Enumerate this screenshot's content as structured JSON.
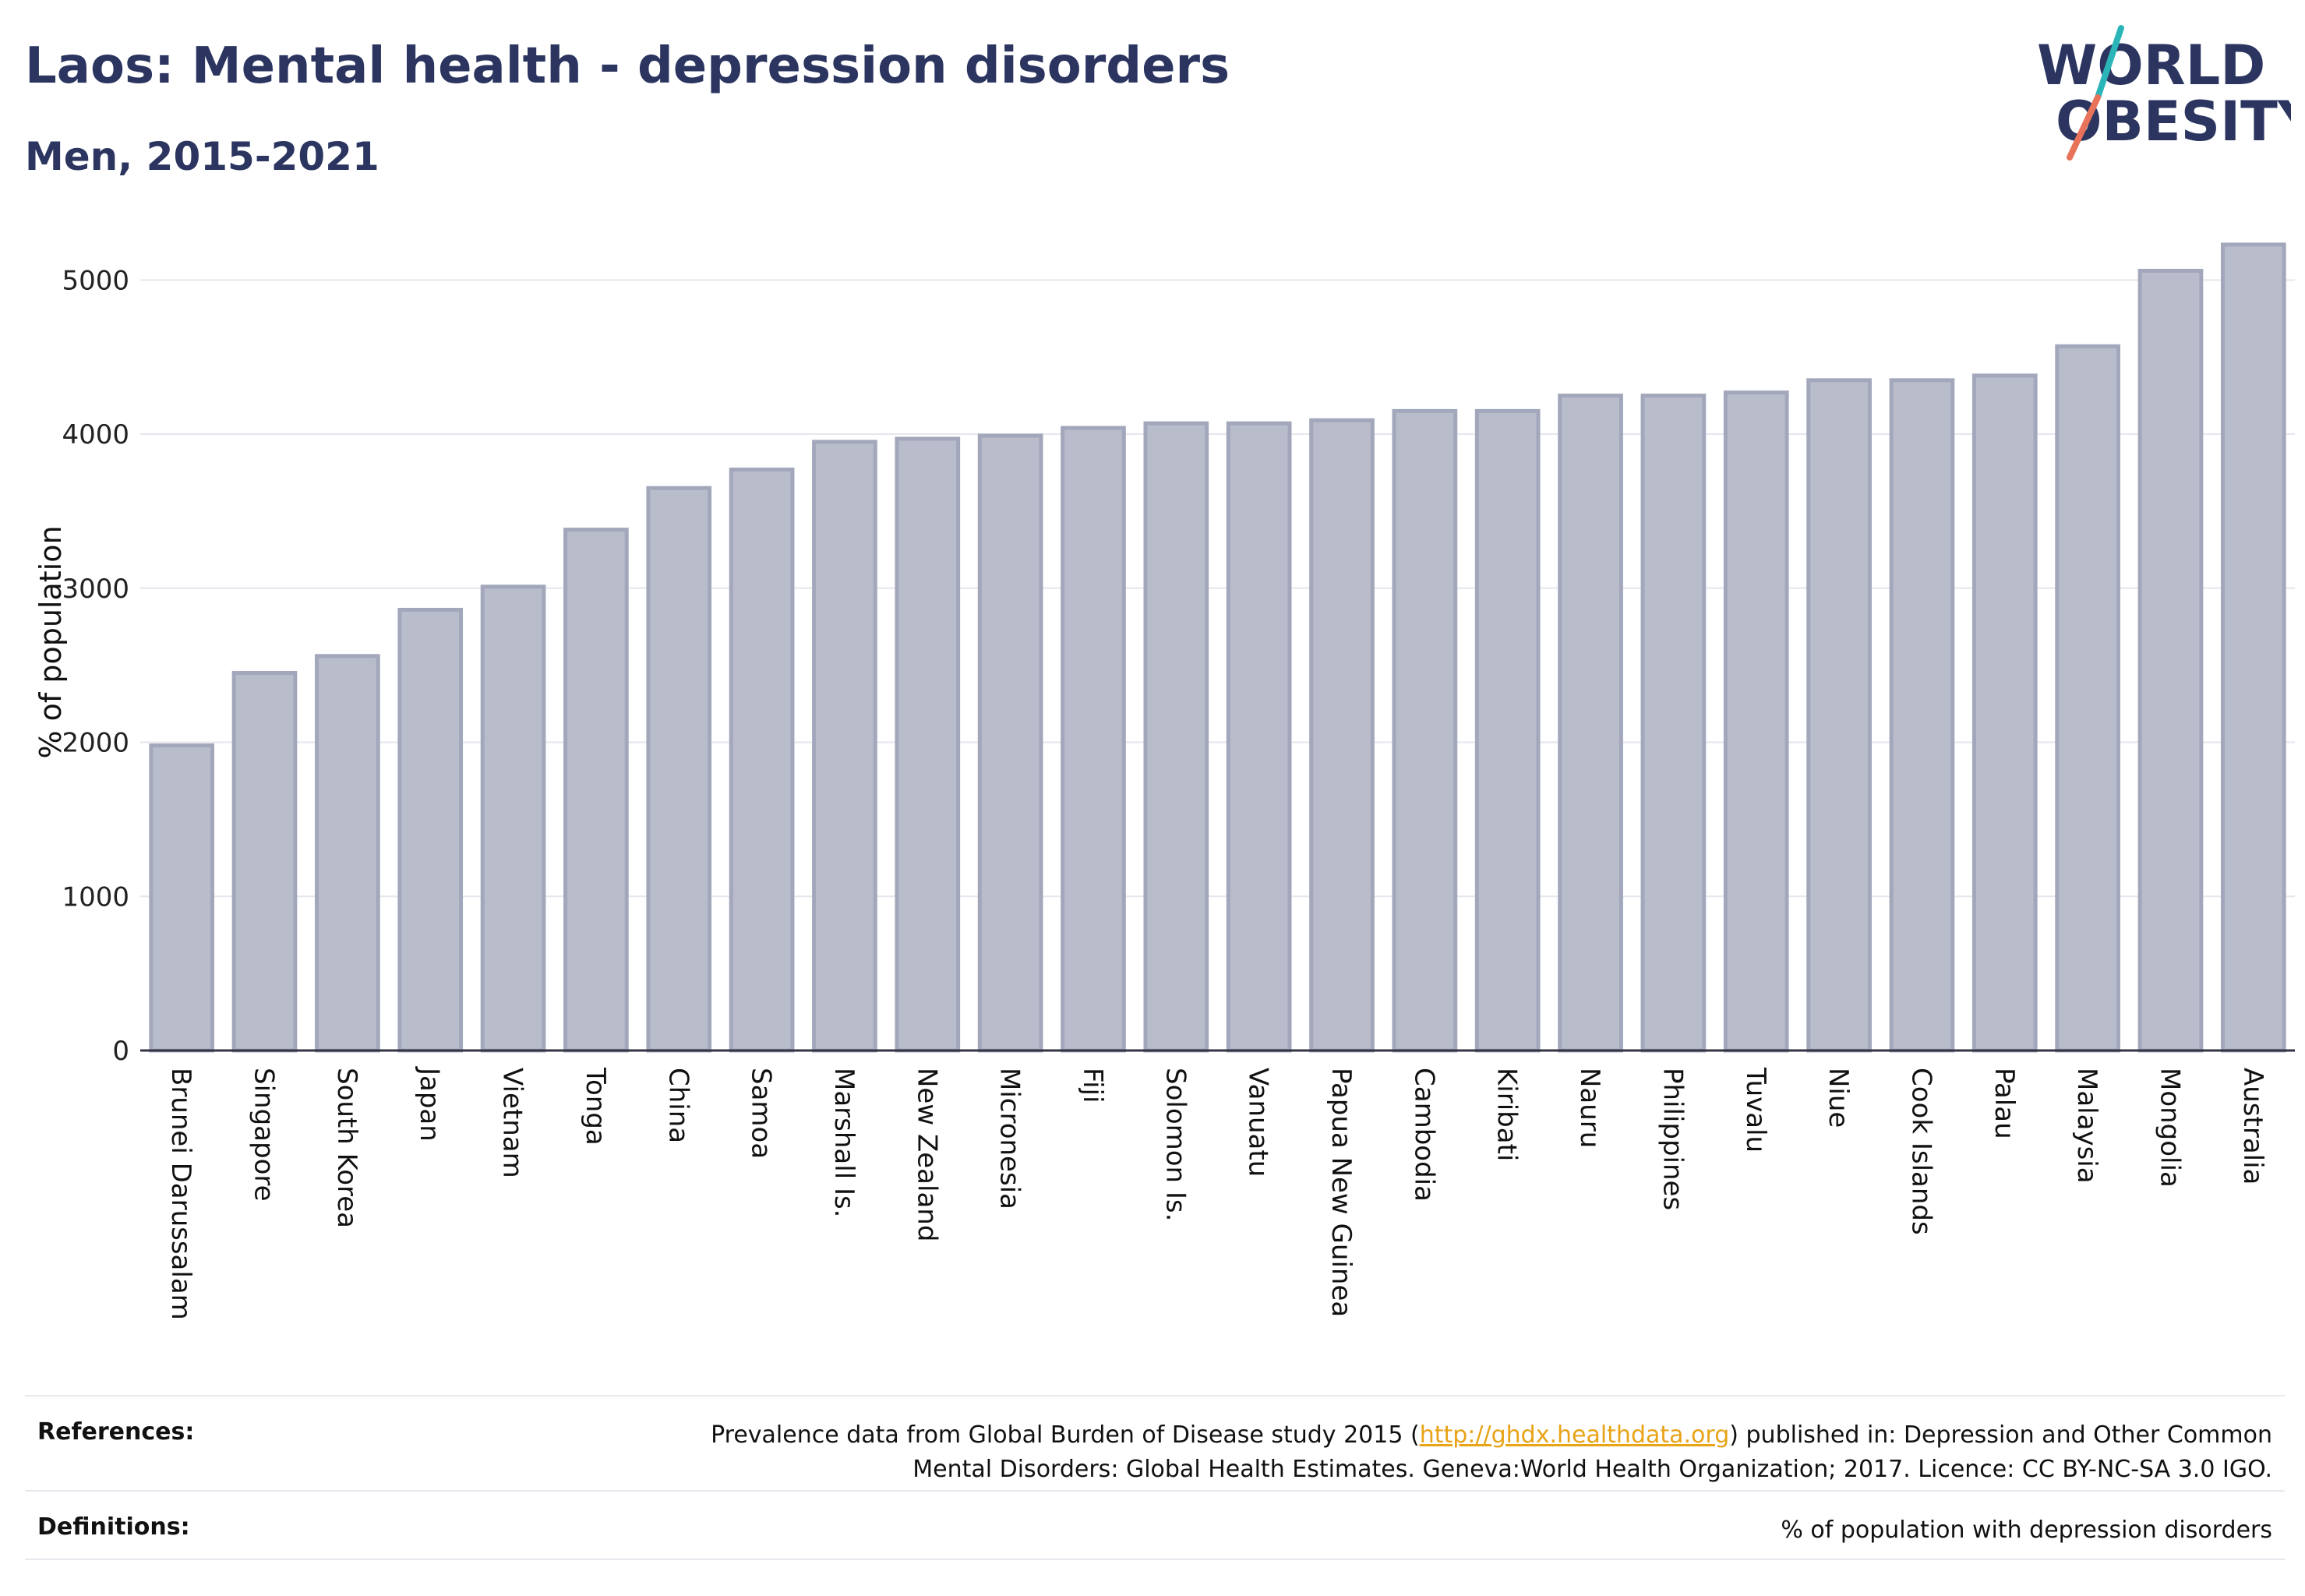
{
  "header": {
    "title": "Laos: Mental health - depression disorders",
    "subtitle": "Men, 2015-2021"
  },
  "logo": {
    "line1": "WORLD",
    "line2": "OBESITY",
    "accent_teal": "#2bb5b8",
    "accent_coral": "#e8735a"
  },
  "chart_data": {
    "type": "bar",
    "ylabel": "% of population",
    "xlabel": "",
    "ylim": [
      0,
      5300
    ],
    "yticks": [
      0,
      1000,
      2000,
      3000,
      4000,
      5000
    ],
    "grid": true,
    "categories": [
      "Brunei Darussalam",
      "Singapore",
      "South Korea",
      "Japan",
      "Vietnam",
      "Tonga",
      "China",
      "Samoa",
      "Marshall Is.",
      "New Zealand",
      "Micronesia",
      "Fiji",
      "Solomon Is.",
      "Vanuatu",
      "Papua New Guinea",
      "Cambodia",
      "Kiribati",
      "Nauru",
      "Philippines",
      "Tuvalu",
      "Niue",
      "Cook Islands",
      "Palau",
      "Malaysia",
      "Mongolia",
      "Australia"
    ],
    "values": [
      1980,
      2450,
      2560,
      2860,
      3010,
      3380,
      3650,
      3770,
      3950,
      3970,
      3990,
      4040,
      4070,
      4070,
      4090,
      4150,
      4150,
      4250,
      4250,
      4270,
      4350,
      4350,
      4380,
      4570,
      5060,
      5230
    ],
    "bar_color": "#b9bccb",
    "bar_edge_color": "#a3a7bb"
  },
  "footer": {
    "references_label": "References:",
    "references_text_before": "Prevalence data from Global Burden of Disease study 2015 (",
    "references_link": "http://ghdx.healthdata.org",
    "references_text_after": ") published in: Depression and Other Common",
    "references_line2": "Mental Disorders: Global Health Estimates. Geneva:World Health Organization; 2017. Licence: CC BY-NC-SA 3.0 IGO.",
    "definitions_label": "Definitions:",
    "definitions_text": "% of population with depression disorders"
  }
}
